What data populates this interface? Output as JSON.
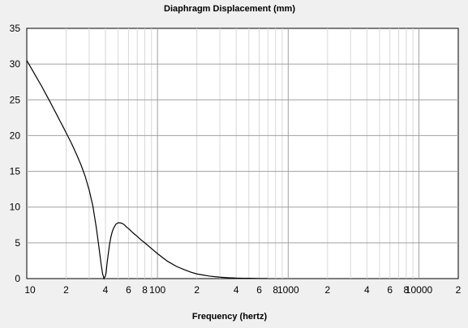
{
  "chart_data": {
    "type": "line",
    "title": "Diaphragm Displacement (mm)",
    "xlabel": "Frequency (hertz)",
    "ylabel": "",
    "x_scale": "log",
    "xlim": [
      10,
      20000
    ],
    "ylim": [
      0,
      35
    ],
    "grid": true,
    "y_ticks": [
      0,
      5,
      10,
      15,
      20,
      25,
      30,
      35
    ],
    "x_ticks": [
      {
        "value": 10,
        "label": "10"
      },
      {
        "value": 20,
        "label": "2"
      },
      {
        "value": 40,
        "label": "4"
      },
      {
        "value": 60,
        "label": "6"
      },
      {
        "value": 80,
        "label": "8"
      },
      {
        "value": 100,
        "label": "100"
      },
      {
        "value": 200,
        "label": "2"
      },
      {
        "value": 400,
        "label": "4"
      },
      {
        "value": 600,
        "label": "6"
      },
      {
        "value": 800,
        "label": "8"
      },
      {
        "value": 1000,
        "label": "1000"
      },
      {
        "value": 2000,
        "label": "2"
      },
      {
        "value": 4000,
        "label": "4"
      },
      {
        "value": 6000,
        "label": "6"
      },
      {
        "value": 8000,
        "label": "8"
      },
      {
        "value": 10000,
        "label": "10000"
      },
      {
        "value": 20000,
        "label": "2"
      }
    ],
    "series": [
      {
        "color": "#000000",
        "x": [
          10,
          11,
          12,
          13,
          14,
          15,
          16,
          17,
          18,
          19,
          20,
          22,
          24,
          26,
          28,
          30,
          32,
          34,
          35,
          36,
          37,
          38,
          39,
          40,
          40.5,
          41,
          42,
          43,
          44,
          45,
          46,
          48,
          50,
          52,
          54,
          56,
          58,
          60,
          65,
          70,
          75,
          80,
          90,
          100,
          110,
          120,
          140,
          160,
          180,
          200,
          250,
          300,
          350,
          400,
          450,
          500,
          550,
          600,
          650,
          700
        ],
        "y": [
          30.5,
          29.2,
          28.0,
          26.9,
          25.8,
          24.8,
          23.8,
          22.9,
          22.0,
          21.2,
          20.4,
          18.9,
          17.4,
          15.9,
          14.3,
          12.4,
          10.2,
          7.2,
          5.5,
          3.8,
          2.1,
          0.7,
          0.0,
          0.4,
          0.9,
          1.9,
          3.4,
          4.8,
          5.8,
          6.5,
          7.0,
          7.6,
          7.8,
          7.8,
          7.7,
          7.5,
          7.2,
          7.0,
          6.4,
          5.9,
          5.4,
          5.0,
          4.2,
          3.5,
          2.9,
          2.4,
          1.7,
          1.25,
          0.9,
          0.65,
          0.35,
          0.2,
          0.12,
          0.07,
          0.05,
          0.04,
          0.03,
          0.02,
          0.02,
          0.02
        ]
      }
    ]
  }
}
